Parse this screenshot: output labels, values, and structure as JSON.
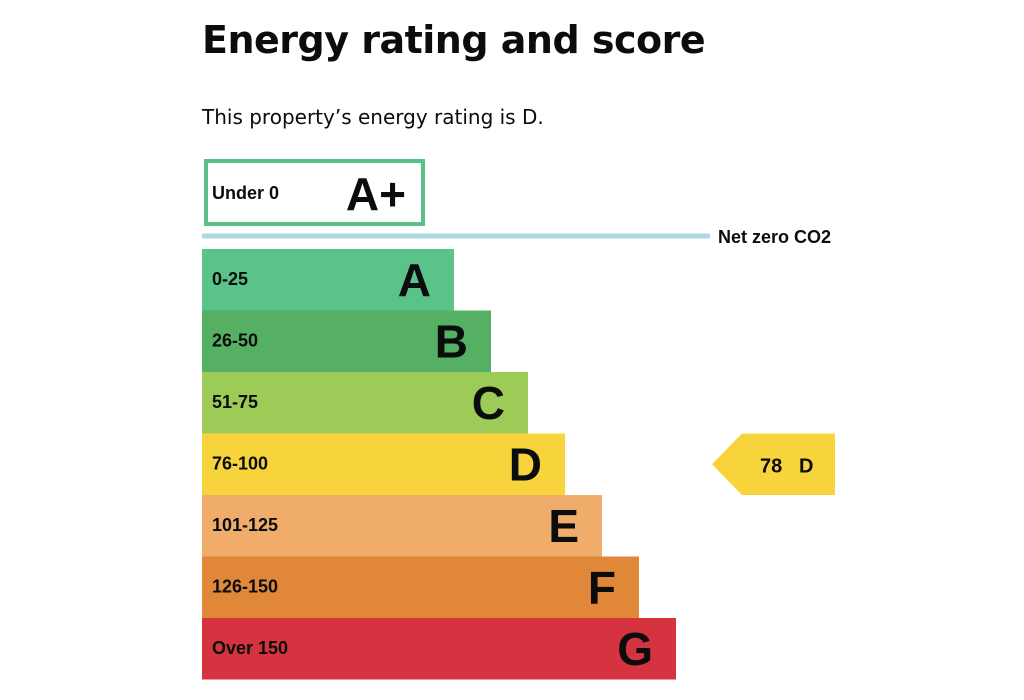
{
  "page": {
    "title": "Energy rating and score",
    "intro": "This property’s energy rating is D."
  },
  "chart_data": {
    "type": "bar",
    "bands": [
      {
        "letter": "A+",
        "range": "Under 0",
        "color": "#5ac189",
        "outlined": true
      },
      {
        "letter": "A",
        "range": "0-25",
        "color": "#5ac38a"
      },
      {
        "letter": "B",
        "range": "26-50",
        "color": "#55b063"
      },
      {
        "letter": "C",
        "range": "51-75",
        "color": "#9dcb57"
      },
      {
        "letter": "D",
        "range": "76-100",
        "color": "#f7d43b"
      },
      {
        "letter": "E",
        "range": "101-125",
        "color": "#efac6b"
      },
      {
        "letter": "F",
        "range": "126-150",
        "color": "#e08739"
      },
      {
        "letter": "G",
        "range": "Over 150",
        "color": "#d63340"
      }
    ],
    "net_zero": {
      "label": "Net zero CO2",
      "color": "#add8e0"
    },
    "current": {
      "score": "78",
      "letter": "D",
      "band": "D",
      "color": "#f7d43b"
    }
  }
}
